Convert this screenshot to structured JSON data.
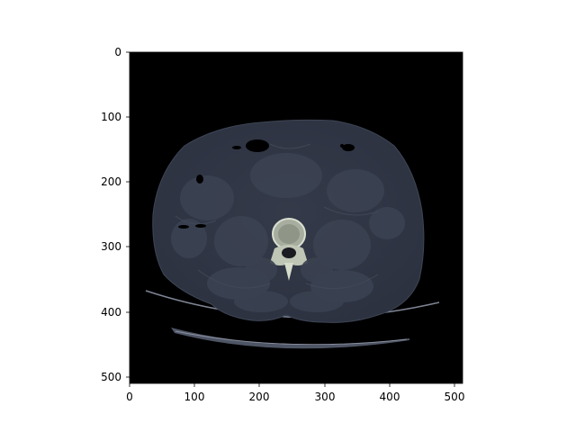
{
  "figure": {
    "background": "#ffffff",
    "image_background": "#000000",
    "tissue_color": "#323846",
    "bone_color": "#c8cfc0",
    "y_ticks": [
      "0",
      "100",
      "200",
      "300",
      "400",
      "500"
    ],
    "x_ticks": [
      "0",
      "100",
      "200",
      "300",
      "400",
      "500"
    ]
  }
}
